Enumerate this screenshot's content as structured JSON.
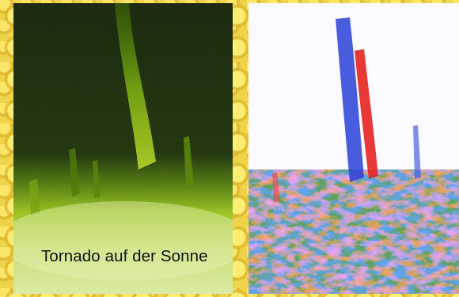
{
  "caption": "Tornado auf der Sonne",
  "panels": [
    {
      "name": "green-channel",
      "colors": {
        "dark": "#0b1406",
        "mid": "#6f9a10",
        "bright": "#dfee9a"
      }
    },
    {
      "name": "doppler-channel",
      "colors": {
        "background": "#fbfbff",
        "blue": "#2233dd",
        "red": "#ee2222"
      }
    }
  ],
  "colors": {
    "page_background": "#efd34a"
  }
}
